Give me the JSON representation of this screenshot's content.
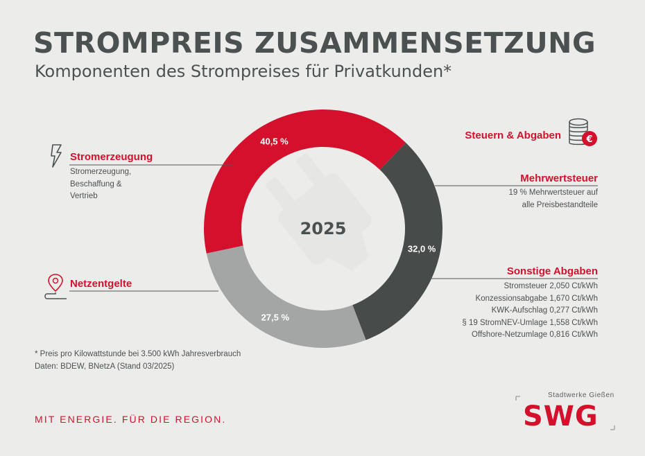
{
  "header": {
    "title": "STROMPREIS ZUSAMMENSETZUNG",
    "subtitle": "Komponenten des Strompreises für Privatkunden*"
  },
  "chart_data": {
    "type": "pie",
    "variant": "donut",
    "center_label": "2025",
    "slices": [
      {
        "name": "Stromerzeugung",
        "value": 40.5,
        "label": "40,5 %",
        "color": "#d4102c"
      },
      {
        "name": "Steuern & Abgaben",
        "value": 32.0,
        "label": "32,0 %",
        "color": "#474c4b"
      },
      {
        "name": "Netzentgelte",
        "value": 27.5,
        "label": "27,5 %",
        "color": "#a4a6a5"
      }
    ]
  },
  "categories": {
    "stromerzeugung": {
      "title": "Stromerzeugung",
      "description_lines": [
        "Stromerzeugung,",
        "Beschaffung &",
        "Vertrieb"
      ],
      "icon": "lightning-icon"
    },
    "netzentgelte": {
      "title": "Netzentgelte",
      "icon": "map-pin-route-icon"
    },
    "steuern": {
      "title": "Steuern & Abgaben",
      "icon": "coin-stack-euro-icon"
    },
    "mehrwertsteuer": {
      "title": "Mehrwertsteuer",
      "description_lines": [
        "19 % Mehrwertsteuer auf",
        "alle Preisbestandteile"
      ]
    },
    "sonstige": {
      "title": "Sonstige Abgaben",
      "items": [
        "Stromsteuer 2,050 Ct/kWh",
        "Konzessionsabgabe 1,670 Ct/kWh",
        "KWK-Aufschlag 0,277 Ct/kWh",
        "§ 19 StromNEV-Umlage 1,558 Ct/kWh",
        "Offshore-Netzumlage 0,816 Ct/kWh"
      ]
    }
  },
  "footnote": {
    "line1": "* Preis pro Kilowattstunde bei 3.500 kWh Jahresverbrauch",
    "line2": "Daten: BDEW, BNetzA (Stand 03/2025)"
  },
  "footer": {
    "claim": "MIT ENERGIE. FÜR DIE REGION.",
    "brand_name": "Stadtwerke Gießen",
    "logo_text": "SWG"
  },
  "colors": {
    "red": "#d4102c",
    "dark_grey": "#474c4b",
    "light_grey": "#a4a6a5",
    "background": "#ececeb",
    "text": "#4a5150"
  }
}
